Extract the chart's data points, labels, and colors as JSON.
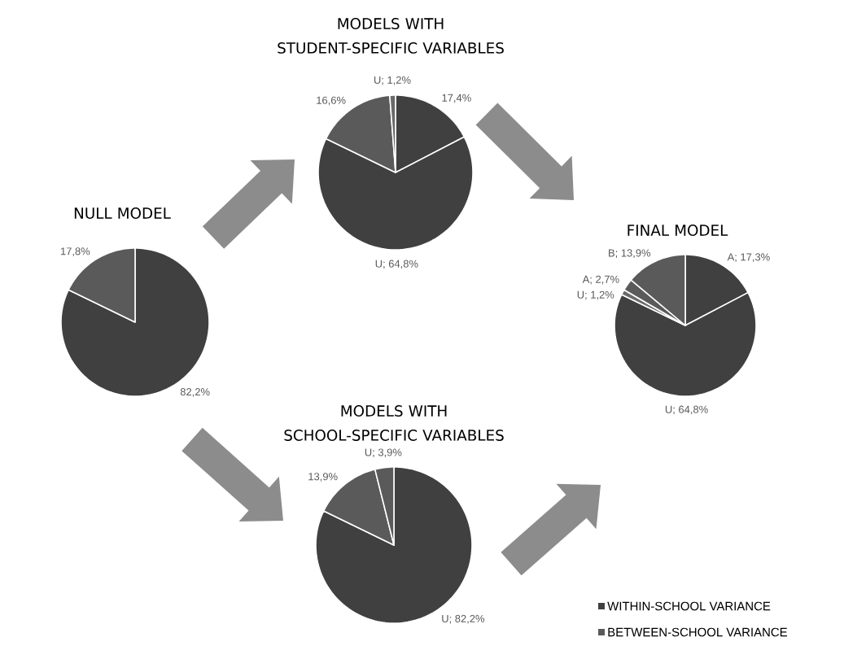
{
  "chart_data": [
    {
      "type": "pie",
      "title": "MODELS WITH STUDENT-SPECIFIC VARIABLES",
      "categories": [
        null,
        null,
        null,
        null
      ],
      "values": [
        17.4,
        64.8,
        16.6,
        1.2
      ],
      "colors": [
        "#404040",
        "#404040",
        "#5a5a5a",
        "#6a6a6a"
      ],
      "value_labels": [
        "17,4%",
        "U; 64,8%",
        "16,6%",
        "U; 1,2%"
      ]
    },
    {
      "type": "pie",
      "title": "NULL MODEL",
      "categories": [
        null,
        null
      ],
      "values": [
        82.2,
        17.8
      ],
      "colors": [
        "#404040",
        "#5a5a5a"
      ],
      "value_labels": [
        "82,2%",
        "17,8%"
      ]
    },
    {
      "type": "pie",
      "title": "FINAL MODEL",
      "categories": [
        null,
        null,
        null,
        null,
        null
      ],
      "values": [
        17.3,
        64.8,
        1.2,
        2.7,
        13.9
      ],
      "colors": [
        "#404040",
        "#404040",
        "#6a6a6a",
        "#5a5a5a",
        "#5a5a5a"
      ],
      "value_labels": [
        "A; 17,3%",
        "U; 64,8%",
        "U; 1,2%",
        "A; 2,7%",
        "B; 13,9%"
      ]
    },
    {
      "type": "pie",
      "title": "MODELS WITH SCHOOL-SPECIFIC VARIABLES",
      "categories": [
        null,
        null,
        null
      ],
      "values": [
        82.2,
        13.9,
        3.9
      ],
      "colors": [
        "#404040",
        "#5a5a5a",
        "#5a5a5a"
      ],
      "value_labels": [
        "U; 82,2%",
        "13,9%",
        "U; 3,9%"
      ]
    },
    {
      "type": "other",
      "annotations": [
        "WITHIN-SCHOOL VARIANCE",
        "BETWEEN-SCHOOL VARIANCE"
      ],
      "colors": [
        "#404040",
        "#5a5a5a"
      ]
    }
  ]
}
